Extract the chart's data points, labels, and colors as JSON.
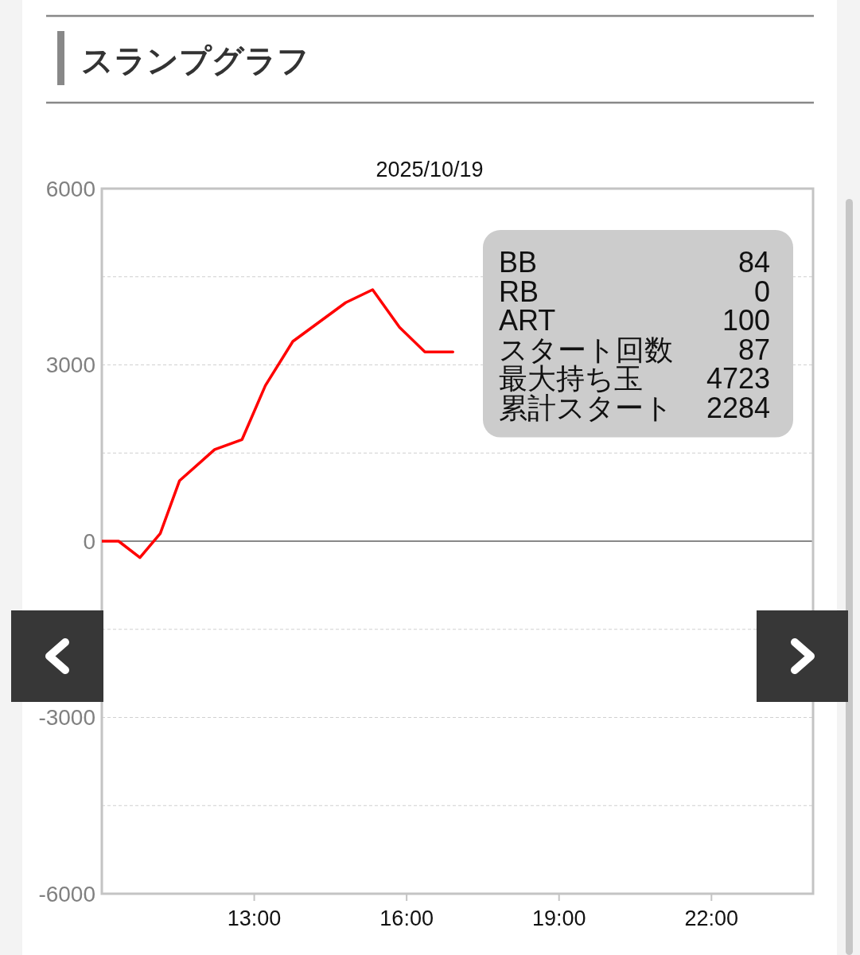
{
  "chart_data": [
    {
      "type": "line",
      "title": "スランプグラフ",
      "subtitle": "2025/10/19",
      "x": [
        10,
        10.33,
        10.75,
        11.15,
        11.53,
        12.22,
        12.76,
        13.22,
        13.76,
        14.8,
        15.33,
        15.86,
        16.36,
        16.91
      ],
      "series": [
        {
          "color": "#ff0000",
          "values": [
            0,
            0,
            -280,
            130,
            1030,
            1560,
            1730,
            2650,
            3400,
            4060,
            4280,
            3640,
            3220,
            3220
          ]
        }
      ],
      "xlim": [
        10,
        24
      ],
      "xticks": [
        {
          "value": 13,
          "label": "13:00"
        },
        {
          "value": 16,
          "label": "16:00"
        },
        {
          "value": 19,
          "label": "19:00"
        },
        {
          "value": 22,
          "label": "22:00"
        }
      ],
      "ylim": [
        -6000,
        6000
      ],
      "yticks": [
        -6000,
        {
          "value": -4500,
          "label": null
        },
        -3000,
        {
          "value": -1500,
          "label": null
        },
        0,
        {
          "value": 1500,
          "label": null
        },
        3000,
        {
          "value": 4500,
          "label": null
        },
        6000
      ],
      "grid": "y"
    },
    {
      "type": "other",
      "categories": [
        "BB",
        "RB",
        "ART",
        "スタート回数",
        "最大持ち玉",
        "累計スタート"
      ],
      "values": [
        84,
        0,
        100,
        87,
        4723,
        2284
      ],
      "data_labels": true
    }
  ]
}
